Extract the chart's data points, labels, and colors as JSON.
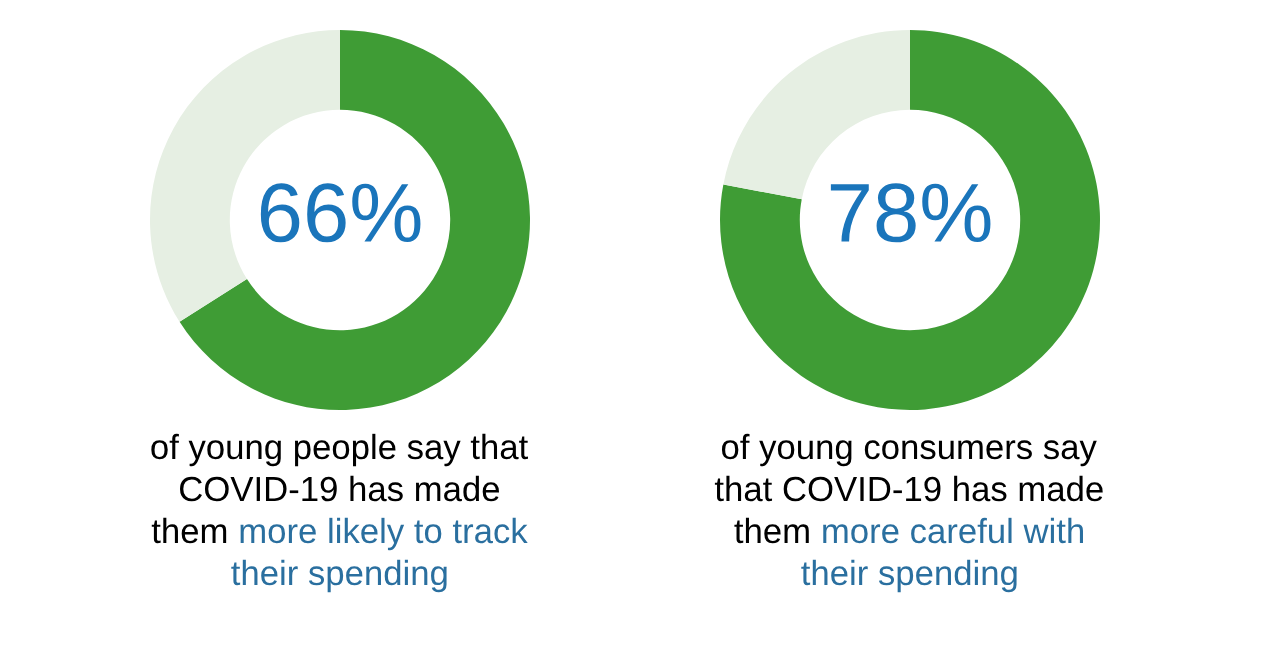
{
  "chart_data": [
    {
      "type": "donut",
      "categories": [
        null,
        null
      ],
      "values": [
        66,
        34
      ],
      "colors": [
        "#3f9c35",
        "#e6efe3"
      ],
      "value_labels": [
        "66%",
        null
      ],
      "annotations": [
        "of young people say that\nCOVID-19 has made\nthem",
        "more likely to track\ntheir spending"
      ]
    },
    {
      "type": "donut",
      "categories": [
        null,
        null
      ],
      "values": [
        78,
        22
      ],
      "colors": [
        "#3f9c35",
        "#e6efe3"
      ],
      "value_labels": [
        "78%",
        null
      ],
      "annotations": [
        "of young consumers say\nthat COVID-19 has made\nthem",
        "more careful with\ntheir spending"
      ]
    }
  ]
}
